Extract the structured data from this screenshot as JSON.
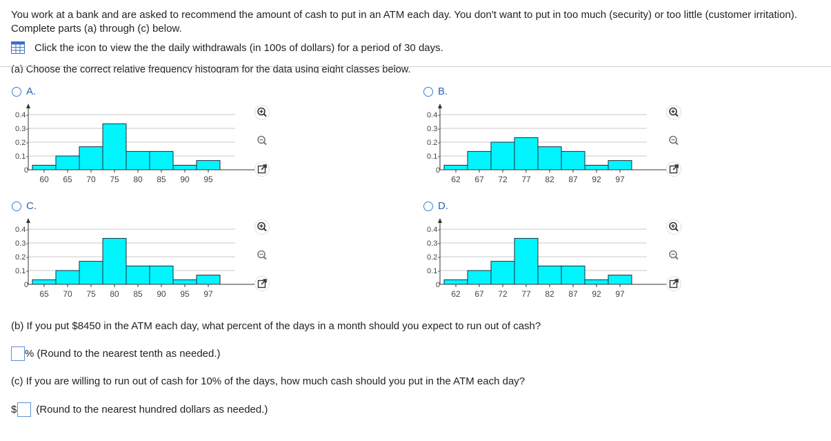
{
  "intro": "You work at a bank and are asked to recommend the amount of cash to put in an ATM each day. You don't want to put in too much (security) or too little (customer irritation). Complete parts (a) through (c) below.",
  "data_link": "Click the icon to view the the daily withdrawals (in 100s of dollars) for a period of 30 days.",
  "part_a": "(a) Choose the correct relative frequency histogram for the data using eight classes below.",
  "options": [
    {
      "label": "A."
    },
    {
      "label": "B."
    },
    {
      "label": "C."
    },
    {
      "label": "D."
    }
  ],
  "icons": [
    "zoom-in-icon",
    "zoom-out-icon",
    "popout-icon",
    "data-table-icon"
  ],
  "colors": {
    "bar": "#00f5ff",
    "accent": "#2a62b4"
  },
  "part_b": "(b) If you put $8450 in the ATM each day, what percent of the days in a month should you expect to run out of cash?",
  "part_b_suffix": "% (Round to the nearest tenth as needed.)",
  "part_c": "(c) If you are willing to run out of cash for 10% of the days, how much cash should you put in the ATM each day?",
  "part_c_prefix": "$",
  "part_c_suffix": "(Round to the nearest hundred dollars as needed.)",
  "chart_data": [
    {
      "type": "bar",
      "option": "A",
      "yticks": [
        "0",
        "0.1-",
        "0.2-",
        "0.3-",
        "0.4-"
      ],
      "ylim": [
        0,
        0.45
      ],
      "categories": [
        "60",
        "65",
        "70",
        "75",
        "80",
        "85",
        "90",
        "95"
      ],
      "values": [
        0.033,
        0.1,
        0.167,
        0.333,
        0.133,
        0.133,
        0.033,
        0.067
      ]
    },
    {
      "type": "bar",
      "option": "B",
      "yticks": [
        "0",
        "0.1-",
        "0.2-",
        "0.3-",
        "0.4-"
      ],
      "ylim": [
        0,
        0.45
      ],
      "categories": [
        "62",
        "67",
        "72",
        "77",
        "82",
        "87",
        "92",
        "97"
      ],
      "values": [
        0.033,
        0.133,
        0.2,
        0.233,
        0.167,
        0.133,
        0.033,
        0.067
      ]
    },
    {
      "type": "bar",
      "option": "C",
      "yticks": [
        "0",
        "0.1-",
        "0.2-",
        "0.3-",
        "0.4-"
      ],
      "ylim": [
        0,
        0.45
      ],
      "categories": [
        "65",
        "70",
        "75",
        "80",
        "85",
        "90",
        "95",
        "97"
      ],
      "values": [
        0.033,
        0.1,
        0.167,
        0.333,
        0.133,
        0.133,
        0.033,
        0.067
      ]
    },
    {
      "type": "bar",
      "option": "D",
      "yticks": [
        "0",
        "0.1-",
        "0.2-",
        "0.3-",
        "0.4-"
      ],
      "ylim": [
        0,
        0.45
      ],
      "categories": [
        "62",
        "67",
        "72",
        "77",
        "82",
        "87",
        "92",
        "97"
      ],
      "values": [
        0.033,
        0.1,
        0.167,
        0.333,
        0.133,
        0.133,
        0.033,
        0.067
      ]
    }
  ]
}
